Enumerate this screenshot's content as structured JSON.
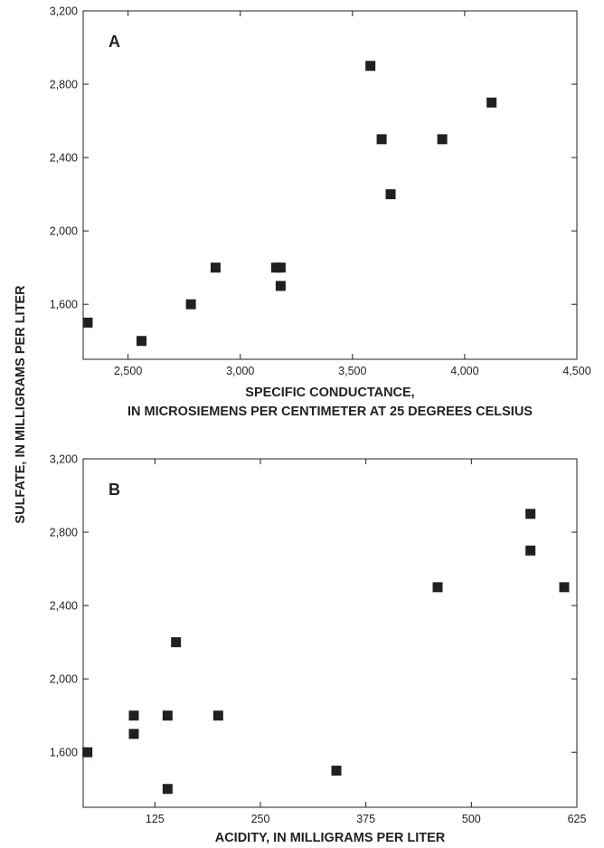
{
  "figure": {
    "shared_ylabel": "SULFATE, IN MILLIGRAMS PER LITER"
  },
  "chart_data": [
    {
      "type": "scatter",
      "panel_label": "A",
      "xlabel_line1": "SPECIFIC CONDUCTANCE,",
      "xlabel_line2": "IN MICROSIEMENS PER CENTIMETER AT 25 DEGREES CELSIUS",
      "ylabel": "SULFATE, IN MILLIGRAMS PER LITER",
      "xlim": [
        2300,
        4500
      ],
      "ylim": [
        1300,
        3200
      ],
      "x_ticks": [
        2500,
        3000,
        3500,
        4000,
        4500
      ],
      "x_tick_labels": [
        "2,500",
        "3,000",
        "3,500",
        "4,000",
        "4,500"
      ],
      "y_ticks": [
        1600,
        2000,
        2400,
        2800,
        3200
      ],
      "y_tick_labels": [
        "1,600",
        "2,000",
        "2,400",
        "2,800",
        "3,200"
      ],
      "grid": false,
      "marker": "square",
      "marker_color": "#231f20",
      "points": [
        {
          "x": 2320,
          "y": 1500
        },
        {
          "x": 2560,
          "y": 1400
        },
        {
          "x": 2780,
          "y": 1600
        },
        {
          "x": 2890,
          "y": 1800
        },
        {
          "x": 3160,
          "y": 1800
        },
        {
          "x": 3180,
          "y": 1800
        },
        {
          "x": 3180,
          "y": 1700
        },
        {
          "x": 3580,
          "y": 2900
        },
        {
          "x": 3630,
          "y": 2500
        },
        {
          "x": 3670,
          "y": 2200
        },
        {
          "x": 3900,
          "y": 2500
        },
        {
          "x": 4120,
          "y": 2700
        }
      ]
    },
    {
      "type": "scatter",
      "panel_label": "B",
      "xlabel": "ACIDITY, IN MILLIGRAMS PER LITER",
      "ylabel": "SULFATE, IN MILLIGRAMS PER LITER",
      "xlim": [
        40,
        625
      ],
      "ylim": [
        1300,
        3200
      ],
      "x_ticks": [
        125,
        250,
        375,
        500,
        625
      ],
      "x_tick_labels": [
        "125",
        "250",
        "375",
        "500",
        "625"
      ],
      "y_ticks": [
        1600,
        2000,
        2400,
        2800,
        3200
      ],
      "y_tick_labels": [
        "1,600",
        "2,000",
        "2,400",
        "2,800",
        "3,200"
      ],
      "grid": false,
      "marker": "square",
      "marker_color": "#231f20",
      "points": [
        {
          "x": 45,
          "y": 1600
        },
        {
          "x": 100,
          "y": 1700
        },
        {
          "x": 100,
          "y": 1800
        },
        {
          "x": 140,
          "y": 1800
        },
        {
          "x": 140,
          "y": 1400
        },
        {
          "x": 150,
          "y": 2200
        },
        {
          "x": 200,
          "y": 1800
        },
        {
          "x": 340,
          "y": 1500
        },
        {
          "x": 460,
          "y": 2500
        },
        {
          "x": 570,
          "y": 2900
        },
        {
          "x": 570,
          "y": 2700
        },
        {
          "x": 610,
          "y": 2500
        }
      ]
    }
  ]
}
